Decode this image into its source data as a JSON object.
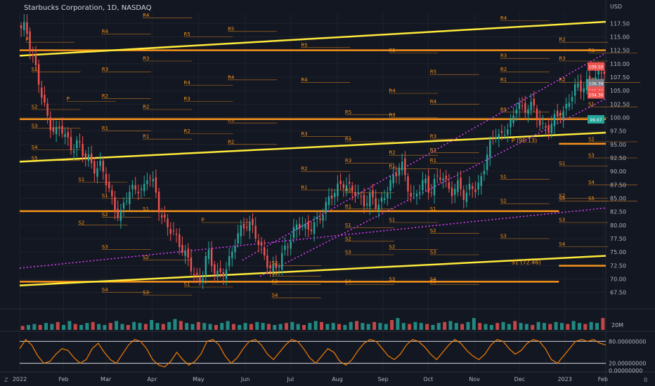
{
  "title": "Starbucks Corporation, 1D, NASDAQ",
  "currency": "USD",
  "colors": {
    "background": "#131722",
    "up": "#26a69a",
    "down": "#ef5350",
    "pivot": "#f7931a",
    "trend": "#ffeb3b",
    "dotted": "#e040fb",
    "oscillator": "#f57c00"
  },
  "price_labels": [
    {
      "text": "109.50",
      "value": 109.5,
      "color": "#ef5350"
    },
    {
      "text": "106.39",
      "value": 106.39,
      "color": "#787b86"
    },
    {
      "text": "105.00",
      "value": 105.0,
      "color": "#ef5350"
    },
    {
      "text": "104.30",
      "value": 104.3,
      "color": "#ef5350"
    },
    {
      "text": "99.67",
      "value": 99.67,
      "color": "#26a69a"
    }
  ],
  "annotations": [
    {
      "text": "P (95.13)",
      "x": 0.875,
      "y": 95.13
    },
    {
      "text": "S1 (72.46)",
      "x": 0.875,
      "y": 72.46
    }
  ],
  "oscillator_axis": [
    {
      "label": "80.00000000",
      "value": 80
    },
    {
      "label": "20.00000000",
      "value": 20
    },
    {
      "label": "0.00000000",
      "value": 0
    }
  ],
  "volume_axis": {
    "label": "20M",
    "value": 20
  },
  "corners": {
    "left": "Z",
    "right": "B"
  },
  "chart_data": {
    "type": "candlestick",
    "x_ticks": [
      {
        "label": "2022",
        "pos": 0.0
      },
      {
        "label": "Feb",
        "pos": 0.075
      },
      {
        "label": "Mar",
        "pos": 0.147
      },
      {
        "label": "Apr",
        "pos": 0.226
      },
      {
        "label": "May",
        "pos": 0.305
      },
      {
        "label": "Jun",
        "pos": 0.385
      },
      {
        "label": "Jul",
        "pos": 0.462
      },
      {
        "label": "Aug",
        "pos": 0.542
      },
      {
        "label": "Sep",
        "pos": 0.62
      },
      {
        "label": "Oct",
        "pos": 0.697
      },
      {
        "label": "Nov",
        "pos": 0.776
      },
      {
        "label": "Dec",
        "pos": 0.853
      },
      {
        "label": "2023",
        "pos": 0.93
      },
      {
        "label": "Feb",
        "pos": 0.995
      }
    ],
    "y_ticks": [
      67.5,
      70.0,
      72.5,
      75.0,
      77.5,
      80.0,
      82.5,
      85.0,
      87.5,
      90.0,
      92.5,
      95.0,
      97.5,
      100.0,
      102.5,
      105.0,
      107.5,
      110.0,
      112.5,
      115.0,
      117.5
    ],
    "ylim": [
      65.5,
      119.5
    ],
    "price_path": [
      [
        0.0,
        116.5
      ],
      [
        0.01,
        117.0
      ],
      [
        0.02,
        112.0
      ],
      [
        0.03,
        108.0
      ],
      [
        0.04,
        103.0
      ],
      [
        0.05,
        99.0
      ],
      [
        0.06,
        97.0
      ],
      [
        0.07,
        98.5
      ],
      [
        0.08,
        96.0
      ],
      [
        0.09,
        94.0
      ],
      [
        0.1,
        95.5
      ],
      [
        0.11,
        93.0
      ],
      [
        0.12,
        92.0
      ],
      [
        0.13,
        90.0
      ],
      [
        0.14,
        91.5
      ],
      [
        0.15,
        87.0
      ],
      [
        0.16,
        84.0
      ],
      [
        0.17,
        81.0
      ],
      [
        0.18,
        85.0
      ],
      [
        0.19,
        86.5
      ],
      [
        0.2,
        87.0
      ],
      [
        0.21,
        86.0
      ],
      [
        0.22,
        90.0
      ],
      [
        0.23,
        87.0
      ],
      [
        0.24,
        82.0
      ],
      [
        0.25,
        80.0
      ],
      [
        0.26,
        79.0
      ],
      [
        0.27,
        77.0
      ],
      [
        0.28,
        75.0
      ],
      [
        0.29,
        73.0
      ],
      [
        0.3,
        70.0
      ],
      [
        0.31,
        69.5
      ],
      [
        0.32,
        75.5
      ],
      [
        0.33,
        72.0
      ],
      [
        0.34,
        70.5
      ],
      [
        0.35,
        71.5
      ],
      [
        0.36,
        74.0
      ],
      [
        0.37,
        78.0
      ],
      [
        0.38,
        79.5
      ],
      [
        0.39,
        80.5
      ],
      [
        0.4,
        79.0
      ],
      [
        0.41,
        76.0
      ],
      [
        0.42,
        73.5
      ],
      [
        0.43,
        71.5
      ],
      [
        0.44,
        72.5
      ],
      [
        0.45,
        75.0
      ],
      [
        0.46,
        77.0
      ],
      [
        0.47,
        79.5
      ],
      [
        0.48,
        80.5
      ],
      [
        0.49,
        79.0
      ],
      [
        0.5,
        80.0
      ],
      [
        0.51,
        81.0
      ],
      [
        0.52,
        83.0
      ],
      [
        0.53,
        85.5
      ],
      [
        0.54,
        86.5
      ],
      [
        0.55,
        88.0
      ],
      [
        0.56,
        87.0
      ],
      [
        0.57,
        86.5
      ],
      [
        0.58,
        85.0
      ],
      [
        0.59,
        84.0
      ],
      [
        0.6,
        85.5
      ],
      [
        0.61,
        83.5
      ],
      [
        0.62,
        84.5
      ],
      [
        0.63,
        87.5
      ],
      [
        0.64,
        89.0
      ],
      [
        0.65,
        92.0
      ],
      [
        0.66,
        88.0
      ],
      [
        0.67,
        84.5
      ],
      [
        0.68,
        86.5
      ],
      [
        0.69,
        88.5
      ],
      [
        0.7,
        86.0
      ],
      [
        0.71,
        88.5
      ],
      [
        0.72,
        89.5
      ],
      [
        0.73,
        87.0
      ],
      [
        0.74,
        86.0
      ],
      [
        0.75,
        88.0
      ],
      [
        0.76,
        84.5
      ],
      [
        0.77,
        88.0
      ],
      [
        0.78,
        86.0
      ],
      [
        0.79,
        90.0
      ],
      [
        0.8,
        94.0
      ],
      [
        0.81,
        97.5
      ],
      [
        0.82,
        96.0
      ],
      [
        0.83,
        98.0
      ],
      [
        0.84,
        99.0
      ],
      [
        0.85,
        103.5
      ],
      [
        0.86,
        100.5
      ],
      [
        0.87,
        103.0
      ],
      [
        0.88,
        101.0
      ],
      [
        0.89,
        98.5
      ],
      [
        0.9,
        97.5
      ],
      [
        0.91,
        99.5
      ],
      [
        0.92,
        100.5
      ],
      [
        0.93,
        101.0
      ],
      [
        0.94,
        104.0
      ],
      [
        0.95,
        106.0
      ],
      [
        0.96,
        105.5
      ],
      [
        0.97,
        106.5
      ],
      [
        0.98,
        107.0
      ],
      [
        0.99,
        108.5
      ],
      [
        1.0,
        109.0
      ]
    ],
    "trend_lines": [
      {
        "x1": 0.0,
        "y1": 111.5,
        "x2": 1.0,
        "y2": 117.8
      },
      {
        "x1": 0.0,
        "y1": 91.8,
        "x2": 1.0,
        "y2": 97.2
      },
      {
        "x1": 0.0,
        "y1": 68.8,
        "x2": 1.0,
        "y2": 74.3
      }
    ],
    "horizontal_levels": [
      {
        "y": 112.5,
        "x1": 0.0,
        "x2": 1.0
      },
      {
        "y": 99.7,
        "x1": 0.0,
        "x2": 1.0
      },
      {
        "y": 82.6,
        "x1": 0.0,
        "x2": 0.92
      },
      {
        "y": 69.5,
        "x1": 0.0,
        "x2": 0.92
      },
      {
        "y": 95.13,
        "x1": 0.92,
        "x2": 1.0
      },
      {
        "y": 72.46,
        "x1": 0.92,
        "x2": 1.0
      }
    ],
    "dotted_lines": [
      {
        "x1": 0.0,
        "y1": 72.0,
        "x2": 1.0,
        "y2": 83.2
      },
      {
        "x1": 0.38,
        "y1": 73.5,
        "x2": 1.0,
        "y2": 112.0
      },
      {
        "x1": 0.41,
        "y1": 70.5,
        "x2": 1.0,
        "y2": 103.5
      }
    ],
    "pivot_labels": [
      {
        "text": "R4",
        "x": 0.21,
        "y": 118.5
      },
      {
        "text": "R5",
        "x": 0.28,
        "y": 115.0
      },
      {
        "text": "R5",
        "x": 0.355,
        "y": 116.0
      },
      {
        "text": "R4",
        "x": 0.14,
        "y": 115.5
      },
      {
        "text": "R3",
        "x": 0.14,
        "y": 108.5
      },
      {
        "text": "R3",
        "x": 0.21,
        "y": 110.5
      },
      {
        "text": "R4",
        "x": 0.28,
        "y": 106.0
      },
      {
        "text": "R4",
        "x": 0.355,
        "y": 107.0
      },
      {
        "text": "R2",
        "x": 0.14,
        "y": 103.5
      },
      {
        "text": "R2",
        "x": 0.21,
        "y": 101.5
      },
      {
        "text": "R3",
        "x": 0.28,
        "y": 103.0
      },
      {
        "text": "R3",
        "x": 0.355,
        "y": 99.0
      },
      {
        "text": "R1",
        "x": 0.14,
        "y": 97.5
      },
      {
        "text": "R1",
        "x": 0.21,
        "y": 96.0
      },
      {
        "text": "R2",
        "x": 0.28,
        "y": 97.0
      },
      {
        "text": "R2",
        "x": 0.355,
        "y": 95.0
      },
      {
        "text": "R5",
        "x": 0.48,
        "y": 113.0
      },
      {
        "text": "R4",
        "x": 0.48,
        "y": 106.5
      },
      {
        "text": "R3",
        "x": 0.48,
        "y": 96.5
      },
      {
        "text": "R2",
        "x": 0.48,
        "y": 90.0
      },
      {
        "text": "R1",
        "x": 0.48,
        "y": 86.5
      },
      {
        "text": "R5",
        "x": 0.555,
        "y": 100.5
      },
      {
        "text": "R4",
        "x": 0.555,
        "y": 95.5
      },
      {
        "text": "R3",
        "x": 0.555,
        "y": 91.5
      },
      {
        "text": "R2",
        "x": 0.555,
        "y": 86.0
      },
      {
        "text": "R1",
        "x": 0.555,
        "y": 83.0
      },
      {
        "text": "R5",
        "x": 0.63,
        "y": 112.0
      },
      {
        "text": "R4",
        "x": 0.63,
        "y": 104.5
      },
      {
        "text": "R3",
        "x": 0.63,
        "y": 100.0
      },
      {
        "text": "R2",
        "x": 0.63,
        "y": 93.0
      },
      {
        "text": "R1",
        "x": 0.63,
        "y": 90.5
      },
      {
        "text": "R5",
        "x": 0.7,
        "y": 108.0
      },
      {
        "text": "R4",
        "x": 0.7,
        "y": 102.5
      },
      {
        "text": "R3",
        "x": 0.7,
        "y": 96.0
      },
      {
        "text": "R2",
        "x": 0.7,
        "y": 93.5
      },
      {
        "text": "R1",
        "x": 0.7,
        "y": 91.5
      },
      {
        "text": "R4",
        "x": 0.82,
        "y": 118.0
      },
      {
        "text": "R3",
        "x": 0.82,
        "y": 111.0
      },
      {
        "text": "R2",
        "x": 0.82,
        "y": 108.5
      },
      {
        "text": "R1",
        "x": 0.82,
        "y": 106.5
      },
      {
        "text": "R5",
        "x": 0.82,
        "y": 101.0
      },
      {
        "text": "R2",
        "x": 0.92,
        "y": 114.0
      },
      {
        "text": "R3",
        "x": 0.92,
        "y": 110.5
      },
      {
        "text": "R2",
        "x": 0.92,
        "y": 106.5
      },
      {
        "text": "R1",
        "x": 0.97,
        "y": 112.0
      },
      {
        "text": "S1",
        "x": 0.02,
        "y": 108.5
      },
      {
        "text": "S2",
        "x": 0.02,
        "y": 101.5
      },
      {
        "text": "S3",
        "x": 0.02,
        "y": 98.0
      },
      {
        "text": "S4",
        "x": 0.02,
        "y": 94.0
      },
      {
        "text": "S5",
        "x": 0.02,
        "y": 92.0
      },
      {
        "text": "S1",
        "x": 0.1,
        "y": 88.0
      },
      {
        "text": "S2",
        "x": 0.1,
        "y": 80.0
      },
      {
        "text": "S1",
        "x": 0.14,
        "y": 85.0
      },
      {
        "text": "S2",
        "x": 0.14,
        "y": 81.5
      },
      {
        "text": "S3",
        "x": 0.14,
        "y": 75.5
      },
      {
        "text": "S4",
        "x": 0.14,
        "y": 67.5
      },
      {
        "text": "S1",
        "x": 0.21,
        "y": 82.5
      },
      {
        "text": "S2",
        "x": 0.21,
        "y": 73.5
      },
      {
        "text": "S3",
        "x": 0.21,
        "y": 67.0
      },
      {
        "text": "S1",
        "x": 0.28,
        "y": 68.5
      },
      {
        "text": "S1",
        "x": 0.43,
        "y": 70.5
      },
      {
        "text": "S2",
        "x": 0.43,
        "y": 72.5
      },
      {
        "text": "S3",
        "x": 0.43,
        "y": 69.0
      },
      {
        "text": "S4",
        "x": 0.43,
        "y": 66.5
      },
      {
        "text": "S1",
        "x": 0.555,
        "y": 79.5
      },
      {
        "text": "S2",
        "x": 0.555,
        "y": 77.0
      },
      {
        "text": "S3",
        "x": 0.555,
        "y": 74.5
      },
      {
        "text": "S4",
        "x": 0.555,
        "y": 69.0
      },
      {
        "text": "S1",
        "x": 0.63,
        "y": 80.5
      },
      {
        "text": "S2",
        "x": 0.63,
        "y": 75.5
      },
      {
        "text": "S3",
        "x": 0.63,
        "y": 69.5
      },
      {
        "text": "S1",
        "x": 0.7,
        "y": 82.5
      },
      {
        "text": "S2",
        "x": 0.7,
        "y": 78.5
      },
      {
        "text": "S3",
        "x": 0.7,
        "y": 74.5
      },
      {
        "text": "S4",
        "x": 0.7,
        "y": 69.5
      },
      {
        "text": "S5",
        "x": 0.7,
        "y": 69.0
      },
      {
        "text": "S1",
        "x": 0.82,
        "y": 88.5
      },
      {
        "text": "S2",
        "x": 0.82,
        "y": 84.0
      },
      {
        "text": "S3",
        "x": 0.82,
        "y": 77.5
      },
      {
        "text": "S1",
        "x": 0.92,
        "y": 91.0
      },
      {
        "text": "S2",
        "x": 0.92,
        "y": 85.0
      },
      {
        "text": "S3",
        "x": 0.92,
        "y": 80.5
      },
      {
        "text": "S4",
        "x": 0.92,
        "y": 76.0
      },
      {
        "text": "S5",
        "x": 0.92,
        "y": 84.5
      },
      {
        "text": "S1",
        "x": 0.97,
        "y": 102.0
      },
      {
        "text": "S2",
        "x": 0.97,
        "y": 95.5
      },
      {
        "text": "S3",
        "x": 0.97,
        "y": 92.5
      },
      {
        "text": "S4",
        "x": 0.97,
        "y": 87.5
      },
      {
        "text": "S5",
        "x": 0.97,
        "y": 84.5
      },
      {
        "text": "P",
        "x": 0.01,
        "y": 114.0
      },
      {
        "text": "P",
        "x": 0.08,
        "y": 103.0
      },
      {
        "text": "P",
        "x": 0.31,
        "y": 80.5
      },
      {
        "text": "P",
        "x": 0.92,
        "y": 100.0
      },
      {
        "text": "P",
        "x": 0.975,
        "y": 106.5
      }
    ],
    "volume": [
      4,
      5,
      6,
      5,
      7,
      6,
      8,
      5,
      9,
      6,
      5,
      7,
      8,
      6,
      5,
      7,
      9,
      6,
      5,
      8,
      7,
      6,
      10,
      7,
      6,
      8,
      11,
      9,
      7,
      6,
      8,
      7,
      6,
      5,
      7,
      9,
      6,
      5,
      7,
      6,
      8,
      7,
      6,
      5,
      6,
      7,
      8,
      6,
      5,
      7,
      9,
      8,
      6,
      7,
      6,
      5,
      8,
      9,
      7,
      6,
      8,
      7,
      6,
      10,
      12,
      7,
      6,
      8,
      7,
      6,
      5,
      7,
      8,
      9,
      7,
      6,
      8,
      12,
      7,
      6,
      5,
      7,
      8,
      6,
      9,
      7,
      6,
      5,
      8,
      7,
      6,
      8,
      7,
      6,
      9,
      7,
      6,
      8,
      7,
      12
    ],
    "oscillator": [
      60,
      85,
      70,
      40,
      20,
      25,
      45,
      60,
      55,
      35,
      20,
      30,
      60,
      75,
      50,
      30,
      20,
      45,
      70,
      85,
      80,
      60,
      30,
      15,
      10,
      25,
      50,
      30,
      15,
      25,
      45,
      80,
      85,
      70,
      40,
      20,
      35,
      60,
      80,
      85,
      70,
      45,
      30,
      50,
      70,
      85,
      80,
      60,
      35,
      20,
      40,
      60,
      50,
      25,
      15,
      30,
      55,
      75,
      85,
      80,
      60,
      40,
      30,
      45,
      70,
      85,
      80,
      65,
      45,
      30,
      50,
      70,
      85,
      75,
      55,
      40,
      30,
      45,
      70,
      85,
      80,
      60,
      45,
      55,
      75,
      85,
      80,
      60,
      30,
      20,
      40,
      60,
      80,
      85,
      80,
      85,
      75,
      70
    ]
  }
}
